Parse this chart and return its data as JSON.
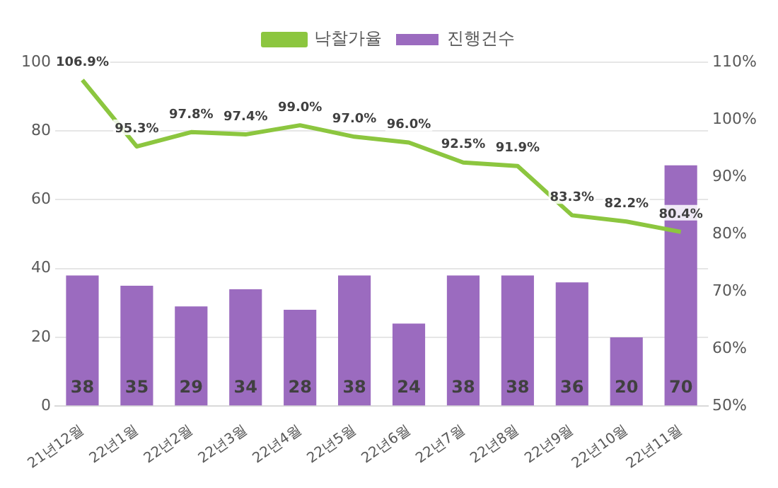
{
  "chart_data": {
    "type": "bar",
    "categories": [
      "21년12월",
      "22년1월",
      "22년2월",
      "22년3월",
      "22년4월",
      "22년5월",
      "22년6월",
      "22년7월",
      "22년8월",
      "22년9월",
      "22년10월",
      "22년11월"
    ],
    "series": [
      {
        "name": "진행건수",
        "color": "#9b6bbf",
        "values": [
          38,
          35,
          29,
          34,
          28,
          38,
          24,
          38,
          38,
          36,
          20,
          70
        ],
        "value_labels": [
          "38",
          "35",
          "29",
          "34",
          "28",
          "38",
          "24",
          "38",
          "38",
          "36",
          "20",
          "70"
        ]
      },
      {
        "name": "낙찰가율",
        "type": "line",
        "axis": "y2",
        "color": "#8cc63f",
        "values": [
          106.9,
          95.3,
          97.8,
          97.4,
          99.0,
          97.0,
          96.0,
          92.5,
          91.9,
          83.3,
          82.2,
          80.4
        ],
        "value_labels": [
          "106.9%",
          "95.3%",
          "97.8%",
          "97.4%",
          "99.0%",
          "97.0%",
          "96.0%",
          "92.5%",
          "91.9%",
          "83.3%",
          "82.2%",
          "80.4%"
        ]
      }
    ],
    "ylim": [
      0,
      100
    ],
    "yticks": [
      0,
      20,
      40,
      60,
      80,
      100
    ],
    "y2lim": [
      50,
      110
    ],
    "y2ticks": [
      {
        "value": 50,
        "label": "50%"
      },
      {
        "value": 60,
        "label": "60%"
      },
      {
        "value": 70,
        "label": "70%"
      },
      {
        "value": 80,
        "label": "80%"
      },
      {
        "value": 90,
        "label": "90%"
      },
      {
        "value": 100,
        "label": "100%"
      },
      {
        "value": 110,
        "label": "110%"
      }
    ],
    "grid": "y",
    "legend": "top",
    "marker": "none"
  }
}
